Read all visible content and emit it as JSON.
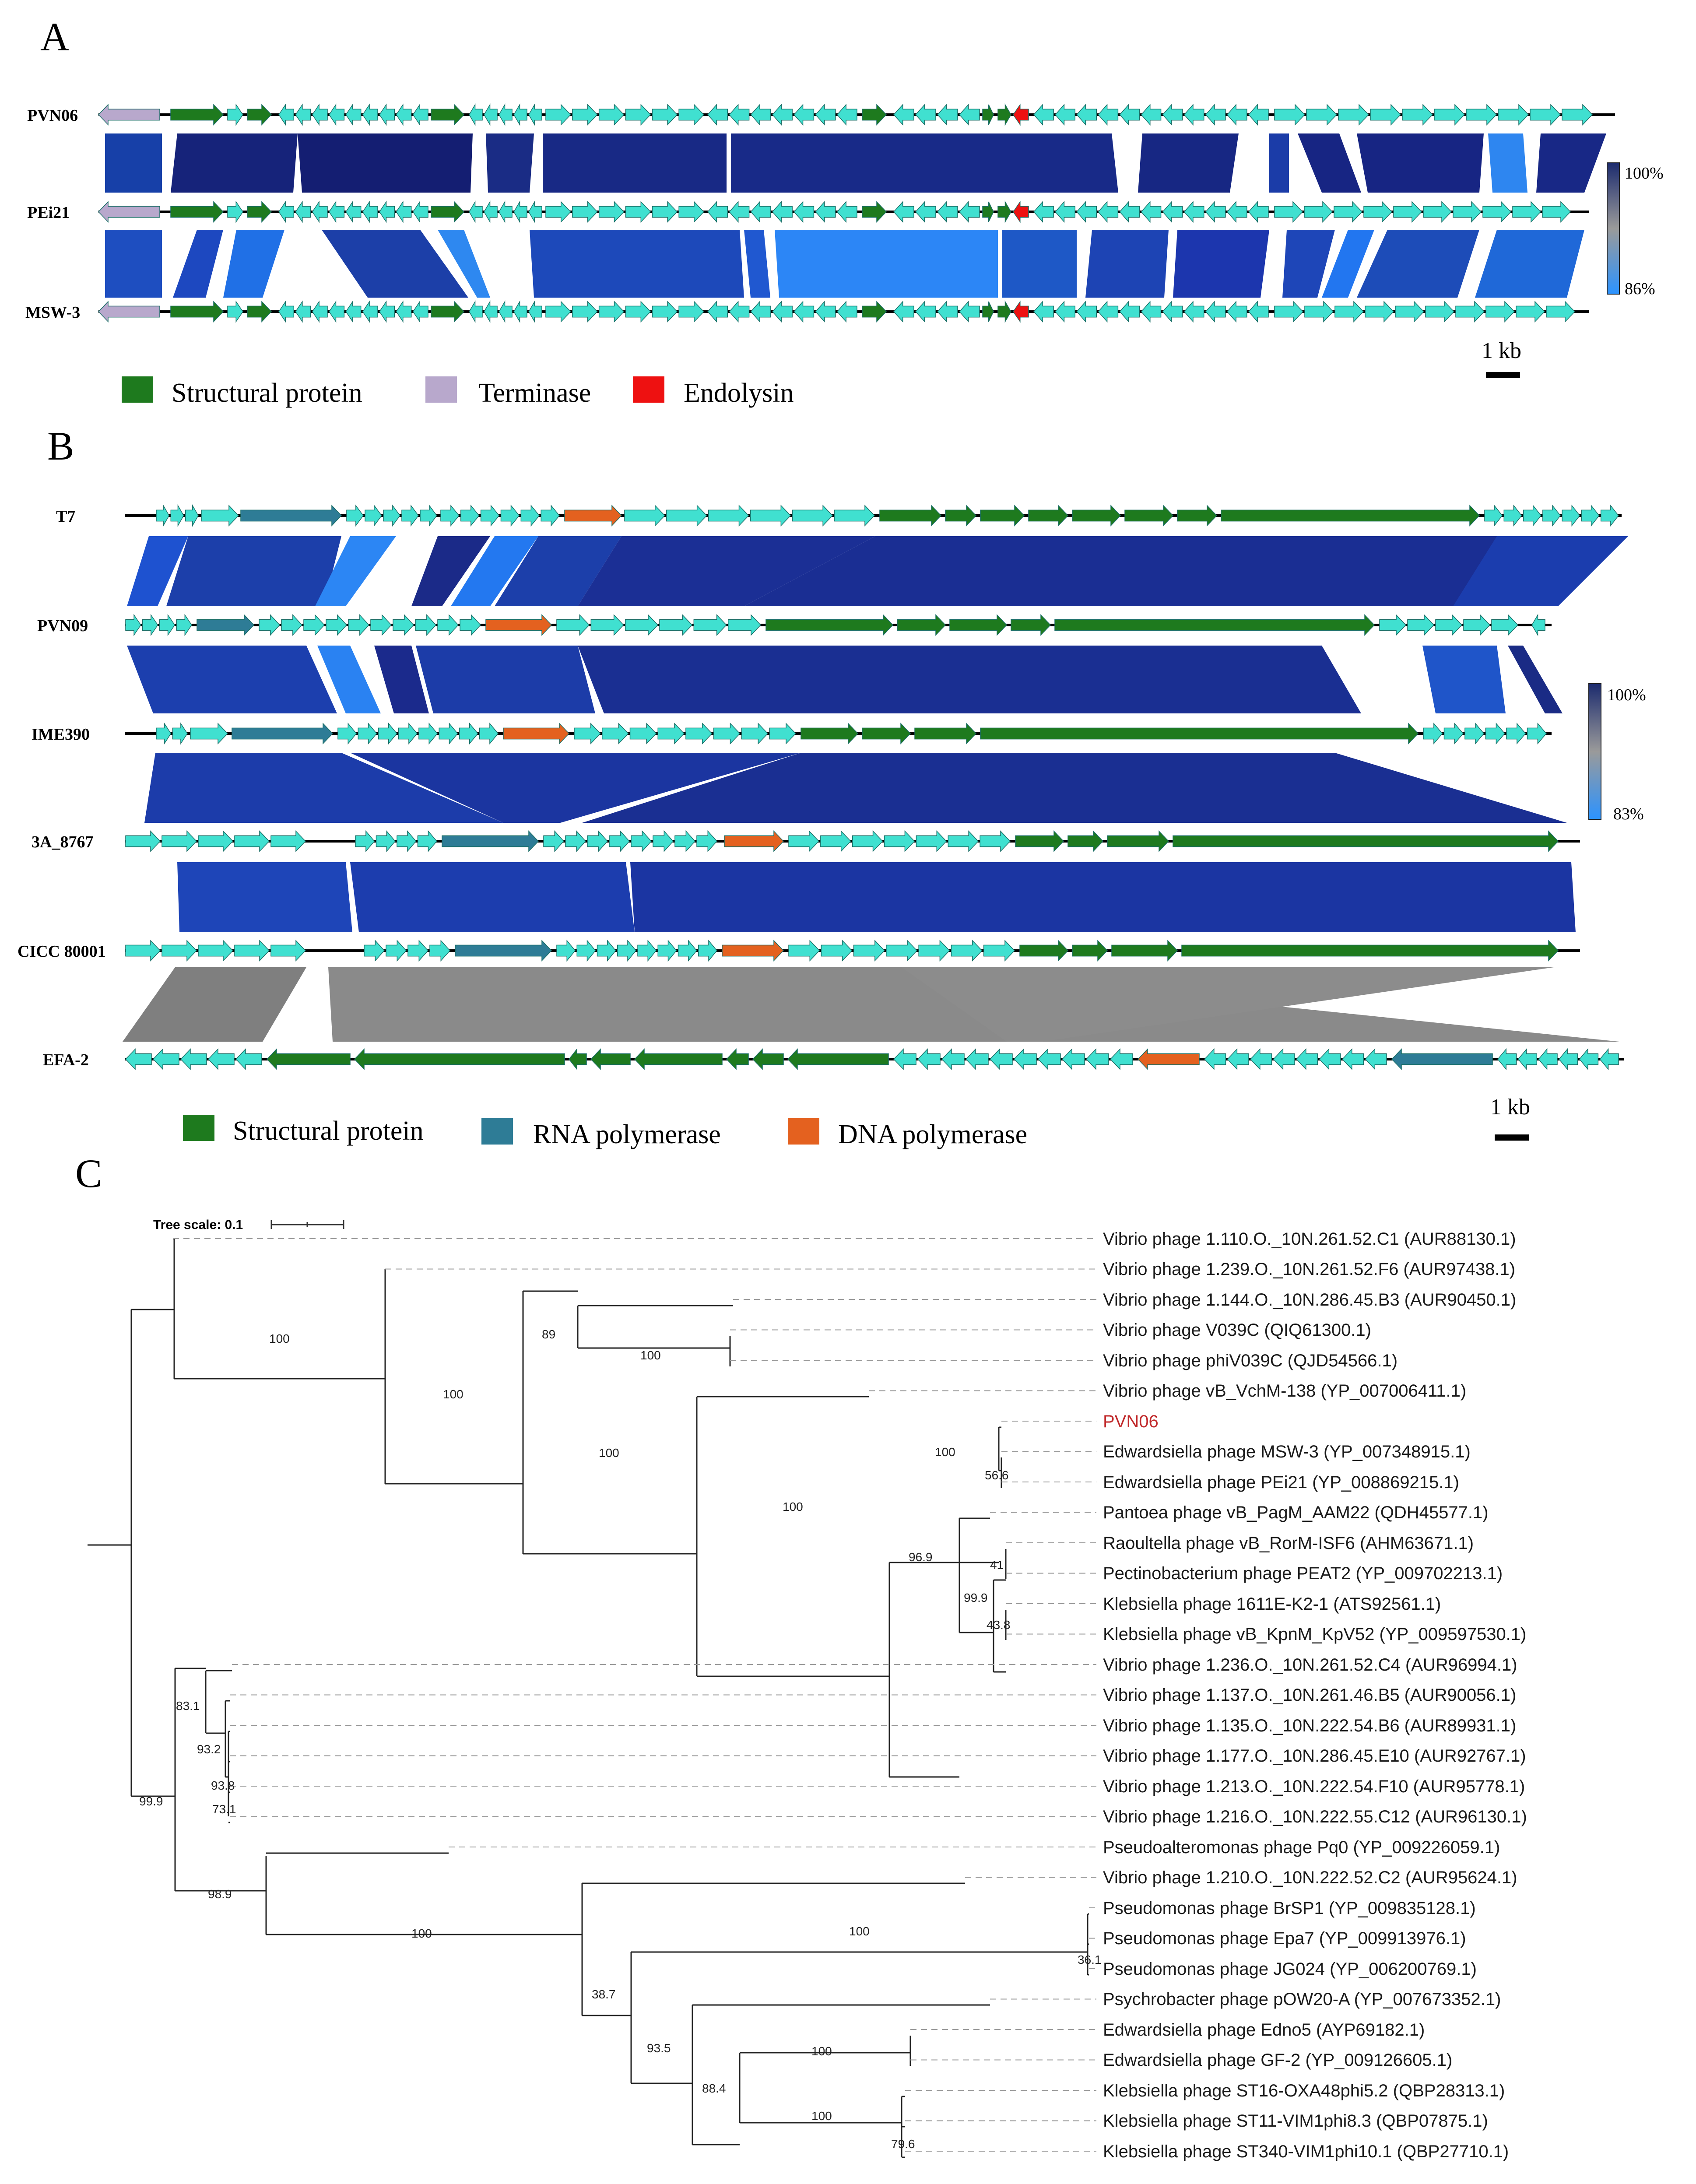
{
  "colors": {
    "gene": "#40E0D0",
    "structural": "#1E7A1E",
    "terminase": "#B8A8CC",
    "endolysin": "#EE1111",
    "rna_pol": "#2E7C96",
    "dna_pol": "#E4611F",
    "highlight_label": "#C0282A"
  },
  "panelA": {
    "letter": "A",
    "genomes": [
      "PVN06",
      "PEi21",
      "MSW-3"
    ],
    "scale_top": "100%",
    "scale_bottom": "86%",
    "scalebar": "1 kb",
    "legend": [
      "Structural protein",
      "Terminase",
      "Endolysin"
    ]
  },
  "panelB": {
    "letter": "B",
    "genomes": [
      "T7",
      "PVN09",
      "IME390",
      "3A_8767",
      "CICC 80001",
      "EFA-2"
    ],
    "scale_top": "100%",
    "scale_bottom": "83%",
    "scalebar": "1 kb",
    "legend": [
      "Structural protein",
      "RNA polymerase",
      "DNA polymerase"
    ]
  },
  "panelC": {
    "letter": "C",
    "tree_scale_label": "Tree scale: 0.1",
    "leaves": [
      "Vibrio phage 1.110.O._10N.261.52.C1 (AUR88130.1)",
      "Vibrio phage 1.239.O._10N.261.52.F6 (AUR97438.1)",
      "Vibrio phage 1.144.O._10N.286.45.B3 (AUR90450.1)",
      "Vibrio phage V039C (QIQ61300.1)",
      "Vibrio phage phiV039C (QJD54566.1)",
      "Vibrio phage vB_VchM-138 (YP_007006411.1)",
      "PVN06",
      "Edwardsiella phage MSW-3 (YP_007348915.1)",
      "Edwardsiella phage PEi21 (YP_008869215.1)",
      "Pantoea phage vB_PagM_AAM22 (QDH45577.1)",
      "Raoultella phage vB_RorM-ISF6 (AHM63671.1)",
      "Pectinobacterium phage PEAT2 (YP_009702213.1)",
      "Klebsiella phage 1611E-K2-1 (ATS92561.1)",
      "Klebsiella phage vB_KpnM_KpV52 (YP_009597530.1)",
      "Vibrio phage 1.236.O._10N.261.52.C4 (AUR96994.1)",
      "Vibrio phage 1.137.O._10N.261.46.B5 (AUR90056.1)",
      "Vibrio phage 1.135.O._10N.222.54.B6 (AUR89931.1)",
      "Vibrio phage 1.177.O._10N.286.45.E10 (AUR92767.1)",
      "Vibrio phage 1.213.O._10N.222.54.F10 (AUR95778.1)",
      "Vibrio phage 1.216.O._10N.222.55.C12 (AUR96130.1)",
      "Pseudoalteromonas phage Pq0 (YP_009226059.1)",
      "Vibrio phage 1.210.O._10N.222.52.C2 (AUR95624.1)",
      "Pseudomonas phage BrSP1 (YP_009835128.1)",
      "Pseudomonas phage Epa7 (YP_009913976.1)",
      "Pseudomonas phage JG024 (YP_006200769.1)",
      "Psychrobacter phage pOW20-A (YP_007673352.1)",
      "Edwardsiella phage Edno5 (AYP69182.1)",
      "Edwardsiella phage GF-2 (YP_009126605.1)",
      "Klebsiella phage ST16-OXA48phi5.2 (QBP28313.1)",
      "Klebsiella phage ST11-VIM1phi8.3 (QBP07875.1)",
      "Klebsiella phage ST340-VIM1phi10.1 (QBP27710.1)"
    ],
    "bootstraps": [
      "100",
      "100",
      "89",
      "100",
      "100",
      "100",
      "100",
      "56.6",
      "96.9",
      "41",
      "99.9",
      "43.8",
      "83.1",
      "93.2",
      "93.8",
      "73.1",
      "99.9",
      "98.9",
      "100",
      "100",
      "36.1",
      "38.7",
      "93.5",
      "100",
      "88.4",
      "100",
      "79.6"
    ]
  }
}
